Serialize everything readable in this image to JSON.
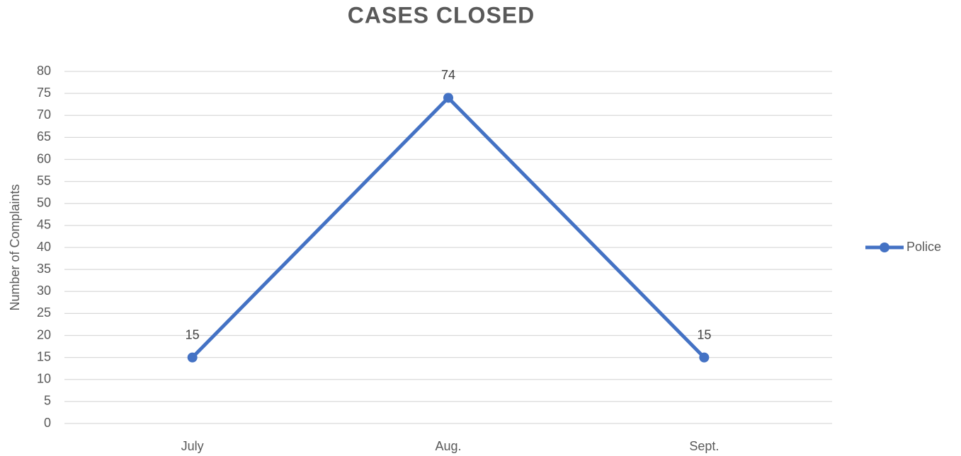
{
  "chart_data": {
    "type": "line",
    "title": "CASES CLOSED",
    "y_label": "Number of Complaints",
    "categories": [
      "July",
      "Aug.",
      "Sept."
    ],
    "series": [
      {
        "name": "Police",
        "color": "#4472c4",
        "values": [
          15,
          74,
          15
        ]
      }
    ],
    "ylim": [
      0,
      80
    ],
    "yticks": [
      0,
      5,
      10,
      15,
      20,
      25,
      30,
      35,
      40,
      45,
      50,
      55,
      60,
      65,
      70,
      75,
      80
    ],
    "grid": true,
    "legend": "right",
    "data_labels": true
  }
}
